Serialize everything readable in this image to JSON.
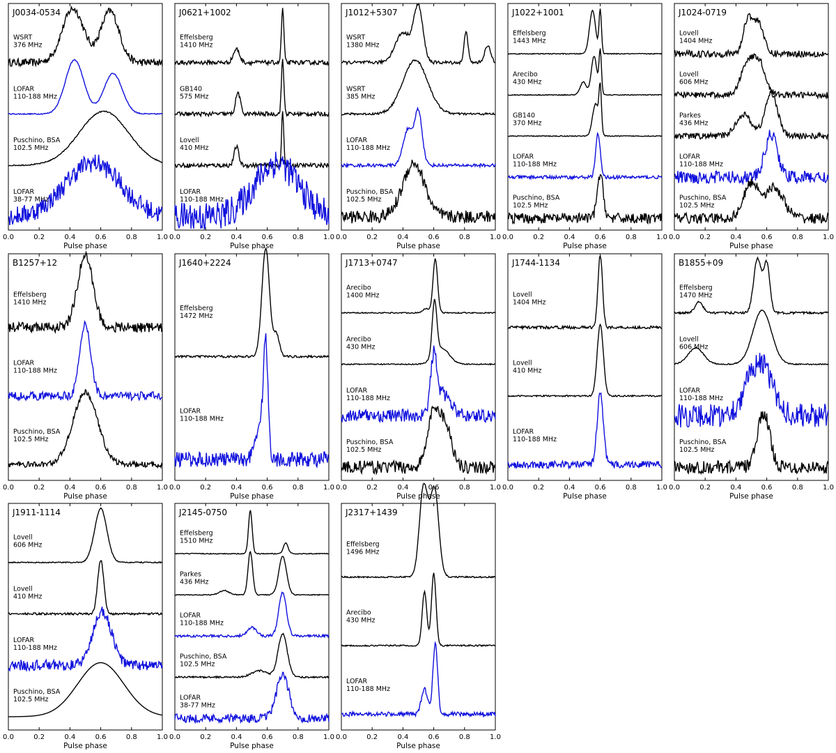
{
  "figure": {
    "x_label": "Pulse phase",
    "x_ticks": [
      "0.0",
      "0.2",
      "0.4",
      "0.6",
      "0.8",
      "1.0"
    ],
    "colors": {
      "lofar": "#1010dd",
      "other": "#000000"
    }
  },
  "chart_data": [
    {
      "type": "line",
      "pulsar": "J0034-0534",
      "xlim": [
        0,
        1
      ],
      "series": [
        {
          "telescope": "WSRT",
          "freq": "376 MHz",
          "color": "black",
          "noise": 0.07,
          "comps": [
            [
              0.42,
              0.07,
              1.0
            ],
            [
              0.66,
              0.06,
              0.95
            ]
          ]
        },
        {
          "telescope": "LOFAR",
          "freq": "110-188 MHz",
          "color": "blue",
          "noise": 0.01,
          "comps": [
            [
              0.43,
              0.06,
              1.0
            ],
            [
              0.68,
              0.06,
              0.75
            ]
          ]
        },
        {
          "telescope": "Puschino, BSA",
          "freq": "102.5 MHz",
          "color": "black",
          "noise": 0.01,
          "comps": [
            [
              0.62,
              0.16,
              1.0
            ]
          ]
        },
        {
          "telescope": "LOFAR",
          "freq": "38-77 MHz",
          "color": "blue",
          "noise": 0.18,
          "comps": [
            [
              0.55,
              0.18,
              1.0
            ]
          ]
        }
      ]
    },
    {
      "type": "line",
      "pulsar": "J0621+1002",
      "xlim": [
        0,
        1
      ],
      "series": [
        {
          "telescope": "Effelsberg",
          "freq": "1410 MHz",
          "color": "black",
          "noise": 0.04,
          "comps": [
            [
              0.4,
              0.02,
              0.25
            ],
            [
              0.7,
              0.008,
              1.0
            ]
          ]
        },
        {
          "telescope": "GB140",
          "freq": "575 MHz",
          "color": "black",
          "noise": 0.04,
          "comps": [
            [
              0.41,
              0.015,
              0.4
            ],
            [
              0.7,
              0.008,
              1.0
            ]
          ]
        },
        {
          "telescope": "Lovell",
          "freq": "410 MHz",
          "color": "black",
          "noise": 0.04,
          "comps": [
            [
              0.4,
              0.015,
              0.35
            ],
            [
              0.7,
              0.007,
              1.0
            ]
          ]
        },
        {
          "telescope": "LOFAR",
          "freq": "110-188 MHz",
          "color": "blue",
          "noise": 0.28,
          "comps": [
            [
              0.66,
              0.14,
              1.0
            ]
          ]
        }
      ]
    },
    {
      "type": "line",
      "pulsar": "J1012+5307",
      "xlim": [
        0,
        1
      ],
      "series": [
        {
          "telescope": "WSRT",
          "freq": "1380 MHz",
          "color": "black",
          "noise": 0.03,
          "comps": [
            [
              0.4,
              0.05,
              0.55
            ],
            [
              0.5,
              0.03,
              1.0
            ],
            [
              0.81,
              0.012,
              0.6
            ],
            [
              0.95,
              0.02,
              0.3
            ]
          ]
        },
        {
          "telescope": "WSRT",
          "freq": "385 MHz",
          "color": "black",
          "noise": 0.02,
          "comps": [
            [
              0.48,
              0.08,
              1.0
            ]
          ]
        },
        {
          "telescope": "LOFAR",
          "freq": "110-188 MHz",
          "color": "blue",
          "noise": 0.03,
          "comps": [
            [
              0.43,
              0.03,
              0.65
            ],
            [
              0.5,
              0.025,
              1.0
            ]
          ]
        },
        {
          "telescope": "Puschino, BSA",
          "freq": "102.5 MHz",
          "color": "black",
          "noise": 0.12,
          "comps": [
            [
              0.47,
              0.07,
              1.0
            ]
          ]
        }
      ]
    },
    {
      "type": "line",
      "pulsar": "J1022+1001",
      "xlim": [
        0,
        1
      ],
      "series": [
        {
          "telescope": "Effelsberg",
          "freq": "1443 MHz",
          "color": "black",
          "noise": 0.01,
          "comps": [
            [
              0.55,
              0.02,
              1.0
            ],
            [
              0.6,
              0.008,
              1.0
            ]
          ]
        },
        {
          "telescope": "Arecibo",
          "freq": "430 MHz",
          "color": "black",
          "noise": 0.01,
          "comps": [
            [
              0.49,
              0.02,
              0.3
            ],
            [
              0.56,
              0.018,
              0.9
            ],
            [
              0.6,
              0.008,
              1.0
            ]
          ]
        },
        {
          "telescope": "GB140",
          "freq": "370 MHz",
          "color": "black",
          "noise": 0.01,
          "comps": [
            [
              0.57,
              0.02,
              0.75
            ],
            [
              0.6,
              0.008,
              1.0
            ]
          ]
        },
        {
          "telescope": "LOFAR",
          "freq": "110-188 MHz",
          "color": "blue",
          "noise": 0.04,
          "comps": [
            [
              0.585,
              0.015,
              1.0
            ]
          ]
        },
        {
          "telescope": "Puschino, BSA",
          "freq": "102.5 MHz",
          "color": "black",
          "noise": 0.12,
          "comps": [
            [
              0.6,
              0.02,
              1.0
            ]
          ]
        }
      ]
    },
    {
      "type": "line",
      "pulsar": "J1024-0719",
      "xlim": [
        0,
        1
      ],
      "series": [
        {
          "telescope": "Lovell",
          "freq": "1404 MHz",
          "color": "black",
          "noise": 0.08,
          "comps": [
            [
              0.48,
              0.03,
              0.85
            ],
            [
              0.55,
              0.03,
              0.7
            ]
          ]
        },
        {
          "telescope": "Lovell",
          "freq": "606 MHz",
          "color": "black",
          "noise": 0.07,
          "comps": [
            [
              0.47,
              0.04,
              0.7
            ],
            [
              0.55,
              0.04,
              0.75
            ]
          ]
        },
        {
          "telescope": "Parkes",
          "freq": "436 MHz",
          "color": "black",
          "noise": 0.07,
          "comps": [
            [
              0.45,
              0.05,
              0.5
            ],
            [
              0.63,
              0.04,
              1.0
            ]
          ]
        },
        {
          "telescope": "LOFAR",
          "freq": "110-188 MHz",
          "color": "blue",
          "noise": 0.15,
          "comps": [
            [
              0.63,
              0.04,
              1.0
            ]
          ]
        },
        {
          "telescope": "Puschino, BSA",
          "freq": "102.5 MHz",
          "color": "black",
          "noise": 0.12,
          "comps": [
            [
              0.5,
              0.05,
              0.8
            ],
            [
              0.65,
              0.06,
              0.7
            ]
          ]
        }
      ]
    },
    {
      "type": "line",
      "pulsar": "B1257+12",
      "xlim": [
        0,
        1
      ],
      "series": [
        {
          "telescope": "Effelsberg",
          "freq": "1410 MHz",
          "color": "black",
          "noise": 0.07,
          "comps": [
            [
              0.5,
              0.05,
              1.0
            ]
          ]
        },
        {
          "telescope": "LOFAR",
          "freq": "110-188 MHz",
          "color": "blue",
          "noise": 0.06,
          "comps": [
            [
              0.5,
              0.035,
              1.0
            ]
          ]
        },
        {
          "telescope": "Puschino, BSA",
          "freq": "102.5 MHz",
          "color": "black",
          "noise": 0.04,
          "comps": [
            [
              0.5,
              0.08,
              1.0
            ]
          ]
        }
      ]
    },
    {
      "type": "line",
      "pulsar": "J1640+2224",
      "xlim": [
        0,
        1
      ],
      "series": [
        {
          "telescope": "Effelsberg",
          "freq": "1472 MHz",
          "color": "black",
          "noise": 0.01,
          "comps": [
            [
              0.59,
              0.025,
              1.0
            ],
            [
              0.66,
              0.02,
              0.2
            ]
          ]
        },
        {
          "telescope": "LOFAR",
          "freq": "110-188 MHz",
          "color": "blue",
          "noise": 0.07,
          "comps": [
            [
              0.59,
              0.015,
              1.0
            ],
            [
              0.55,
              0.03,
              0.3
            ]
          ]
        }
      ]
    },
    {
      "type": "line",
      "pulsar": "J1713+0747",
      "xlim": [
        0,
        1
      ],
      "series": [
        {
          "telescope": "Arecibo",
          "freq": "1400 MHz",
          "color": "black",
          "noise": 0.01,
          "comps": [
            [
              0.61,
              0.015,
              1.0
            ],
            [
              0.55,
              0.02,
              0.08
            ]
          ]
        },
        {
          "telescope": "Arecibo",
          "freq": "430 MHz",
          "color": "black",
          "noise": 0.01,
          "comps": [
            [
              0.605,
              0.015,
              1.0
            ],
            [
              0.65,
              0.05,
              0.3
            ]
          ]
        },
        {
          "telescope": "LOFAR",
          "freq": "110-188 MHz",
          "color": "blue",
          "noise": 0.12,
          "comps": [
            [
              0.6,
              0.02,
              1.0
            ],
            [
              0.66,
              0.05,
              0.4
            ]
          ]
        },
        {
          "telescope": "Puschino, BSA",
          "freq": "102.5 MHz",
          "color": "black",
          "noise": 0.12,
          "comps": [
            [
              0.6,
              0.04,
              1.0
            ],
            [
              0.68,
              0.04,
              0.7
            ]
          ]
        }
      ]
    },
    {
      "type": "line",
      "pulsar": "J1744-1134",
      "xlim": [
        0,
        1
      ],
      "series": [
        {
          "telescope": "Lovell",
          "freq": "1404 MHz",
          "color": "black",
          "noise": 0.02,
          "comps": [
            [
              0.6,
              0.015,
              1.0
            ]
          ]
        },
        {
          "telescope": "Lovell",
          "freq": "410 MHz",
          "color": "black",
          "noise": 0.01,
          "comps": [
            [
              0.6,
              0.02,
              1.0
            ]
          ]
        },
        {
          "telescope": "LOFAR",
          "freq": "110-188 MHz",
          "color": "blue",
          "noise": 0.05,
          "comps": [
            [
              0.6,
              0.02,
              1.0
            ]
          ]
        }
      ]
    },
    {
      "type": "line",
      "pulsar": "B1855+09",
      "xlim": [
        0,
        1
      ],
      "series": [
        {
          "telescope": "Effelsberg",
          "freq": "1470 MHz",
          "color": "black",
          "noise": 0.02,
          "comps": [
            [
              0.16,
              0.025,
              0.2
            ],
            [
              0.54,
              0.025,
              1.0
            ],
            [
              0.6,
              0.02,
              0.9
            ]
          ]
        },
        {
          "telescope": "Lovell",
          "freq": "606 MHz",
          "color": "black",
          "noise": 0.01,
          "comps": [
            [
              0.14,
              0.05,
              0.3
            ],
            [
              0.57,
              0.06,
              1.0
            ]
          ]
        },
        {
          "telescope": "LOFAR",
          "freq": "110-188 MHz",
          "color": "blue",
          "noise": 0.22,
          "comps": [
            [
              0.55,
              0.08,
              1.0
            ]
          ]
        },
        {
          "telescope": "Puschino, BSA",
          "freq": "102.5 MHz",
          "color": "black",
          "noise": 0.12,
          "comps": [
            [
              0.58,
              0.04,
              1.0
            ]
          ]
        }
      ]
    },
    {
      "type": "line",
      "pulsar": "J1911-1114",
      "xlim": [
        0,
        1
      ],
      "series": [
        {
          "telescope": "Lovell",
          "freq": "606 MHz",
          "color": "black",
          "noise": 0.01,
          "comps": [
            [
              0.6,
              0.04,
              1.0
            ]
          ]
        },
        {
          "telescope": "Lovell",
          "freq": "410 MHz",
          "color": "black",
          "noise": 0.02,
          "comps": [
            [
              0.6,
              0.02,
              1.0
            ]
          ]
        },
        {
          "telescope": "LOFAR",
          "freq": "110-188 MHz",
          "color": "blue",
          "noise": 0.1,
          "comps": [
            [
              0.61,
              0.06,
              1.0
            ]
          ]
        },
        {
          "telescope": "Puschino, BSA",
          "freq": "102.5 MHz",
          "color": "black",
          "noise": 0.0,
          "comps": [
            [
              0.6,
              0.15,
              1.0
            ]
          ]
        }
      ]
    },
    {
      "type": "line",
      "pulsar": "J2145-0750",
      "xlim": [
        0,
        1
      ],
      "series": [
        {
          "telescope": "Effelsberg",
          "freq": "1510 MHz",
          "color": "black",
          "noise": 0.01,
          "comps": [
            [
              0.49,
              0.012,
              1.0
            ],
            [
              0.72,
              0.015,
              0.25
            ]
          ]
        },
        {
          "telescope": "Parkes",
          "freq": "436 MHz",
          "color": "black",
          "noise": 0.01,
          "comps": [
            [
              0.49,
              0.015,
              1.0
            ],
            [
              0.7,
              0.025,
              0.9
            ],
            [
              0.32,
              0.03,
              0.1
            ]
          ]
        },
        {
          "telescope": "LOFAR",
          "freq": "110-188 MHz",
          "color": "blue",
          "noise": 0.03,
          "comps": [
            [
              0.5,
              0.03,
              0.2
            ],
            [
              0.7,
              0.025,
              1.0
            ]
          ]
        },
        {
          "telescope": "Puschino, BSA",
          "freq": "102.5 MHz",
          "color": "black",
          "noise": 0.02,
          "comps": [
            [
              0.7,
              0.03,
              1.0
            ],
            [
              0.55,
              0.05,
              0.15
            ]
          ]
        },
        {
          "telescope": "LOFAR",
          "freq": "38-77 MHz",
          "color": "blue",
          "noise": 0.1,
          "comps": [
            [
              0.7,
              0.04,
              1.0
            ]
          ]
        }
      ]
    },
    {
      "type": "line",
      "pulsar": "J2317+1439",
      "xlim": [
        0,
        1
      ],
      "series": [
        {
          "telescope": "Effelsberg",
          "freq": "1496 MHz",
          "color": "black",
          "noise": 0.01,
          "comps": [
            [
              0.53,
              0.025,
              0.9
            ],
            [
              0.61,
              0.025,
              0.85
            ],
            [
              0.57,
              0.04,
              0.6
            ]
          ]
        },
        {
          "telescope": "Arecibo",
          "freq": "430 MHz",
          "color": "black",
          "noise": 0.01,
          "comps": [
            [
              0.54,
              0.015,
              0.75
            ],
            [
              0.6,
              0.015,
              1.0
            ]
          ]
        },
        {
          "telescope": "LOFAR",
          "freq": "110-188 MHz",
          "color": "blue",
          "noise": 0.03,
          "comps": [
            [
              0.54,
              0.02,
              0.35
            ],
            [
              0.61,
              0.015,
              1.0
            ]
          ]
        }
      ]
    }
  ]
}
